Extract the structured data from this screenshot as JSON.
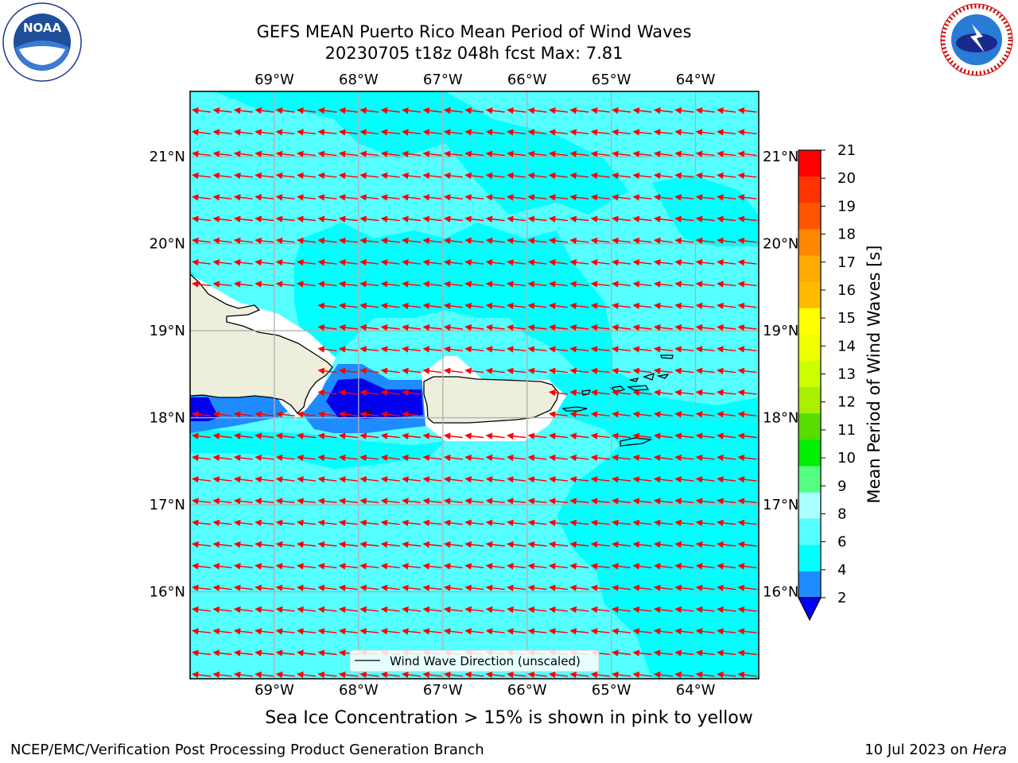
{
  "title": {
    "line1": "GEFS MEAN Puerto Rico Mean Period of Wind Waves",
    "line2": "20230705 t18z 048h fcst   Max: 7.81"
  },
  "map": {
    "lon_range": [
      -70.0,
      -63.25
    ],
    "lat_range": [
      15.0,
      21.75
    ],
    "lon_ticks": [
      "69°W",
      "68°W",
      "67°W",
      "66°W",
      "65°W",
      "64°W"
    ],
    "lat_ticks": [
      "21°N",
      "20°N",
      "19°N",
      "18°N",
      "17°N",
      "16°N"
    ],
    "grid": true,
    "ocean_color": "#55FFFF",
    "land_color": "#EEEEDD",
    "vector_color": "#FF0000",
    "wind_wave_direction": "westward (easterly trade waves)"
  },
  "legend": {
    "label": "Wind Wave Direction (unscaled)"
  },
  "colorbar": {
    "label": "Mean Period of Wind Waves [s]",
    "ticks": [
      "2",
      "4",
      "6",
      "8",
      "9",
      "10",
      "11",
      "12",
      "13",
      "14",
      "15",
      "16",
      "17",
      "18",
      "19",
      "20",
      "21"
    ],
    "colors": [
      "#0000FF",
      "#1E8CFF",
      "#00FFFF",
      "#55FFFF",
      "#AAFFFF",
      "#55FF80",
      "#00EE00",
      "#55DD00",
      "#AAEE00",
      "#CCFF00",
      "#EEFF00",
      "#FFFF00",
      "#FFBB00",
      "#FFAA00",
      "#FF8800",
      "#FF5500",
      "#FF3300",
      "#FF0000"
    ],
    "extend": "min"
  },
  "subtitle": "Sea Ice Concentration > 15% is shown in pink to yellow",
  "footer": {
    "left": "NCEP/EMC/Verification Post Processing Product Generation Branch",
    "right_prefix": "10 Jul 2023 on ",
    "right_host": "Hera"
  },
  "logos": {
    "left": "NOAA",
    "right": "NATIONAL WEATHER SERVICE"
  }
}
